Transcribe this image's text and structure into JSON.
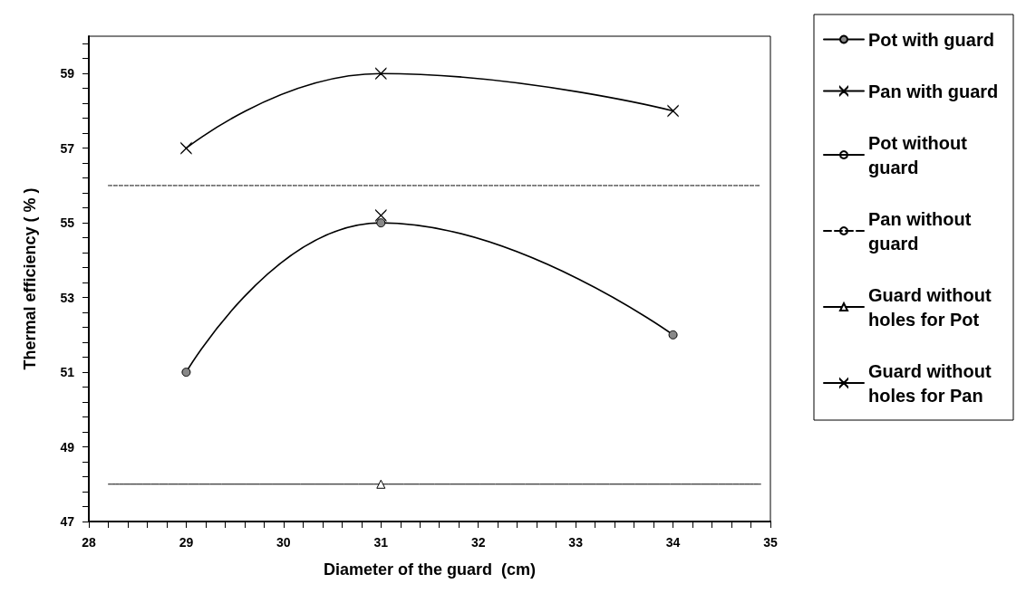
{
  "chart_data": {
    "type": "line",
    "xlabel": "Diameter of the guard  (cm)",
    "ylabel": "Thermal efficiency ( % )",
    "xlim": [
      28,
      35
    ],
    "xticks": [
      28,
      29,
      30,
      31,
      32,
      33,
      34,
      35
    ],
    "ylim": [
      47,
      60
    ],
    "yticks": [
      47,
      49,
      51,
      53,
      55,
      57,
      59
    ],
    "grid": false,
    "legend": "right",
    "series": [
      {
        "name": "Pot with guard",
        "color": "#000000",
        "marker": "circle",
        "line_style": "solid",
        "x": [
          29,
          31,
          34
        ],
        "values": [
          51,
          55,
          52
        ]
      },
      {
        "name": "Pan with guard",
        "color": "#000000",
        "marker": "cross",
        "line_style": "solid",
        "x": [
          29,
          31,
          34
        ],
        "values": [
          57,
          59,
          58
        ]
      },
      {
        "name": "Pot without guard",
        "color": "#000000",
        "marker": "none",
        "line_style": "solid",
        "x": [
          28.2,
          34.9
        ],
        "values": [
          48,
          48
        ]
      },
      {
        "name": "Pan without guard",
        "color": "#000000",
        "marker": "none",
        "line_style": "dashed",
        "x": [
          28.2,
          34.9
        ],
        "values": [
          56,
          56
        ]
      },
      {
        "name": "Guard without holes for Pot",
        "color": "#000000",
        "marker": "triangle",
        "line_style": "solid",
        "x": [
          31
        ],
        "values": [
          48
        ]
      },
      {
        "name": "Guard without holes for Pan",
        "color": "#000000",
        "marker": "cross",
        "line_style": "solid",
        "x": [
          31
        ],
        "values": [
          55.2
        ]
      }
    ]
  }
}
